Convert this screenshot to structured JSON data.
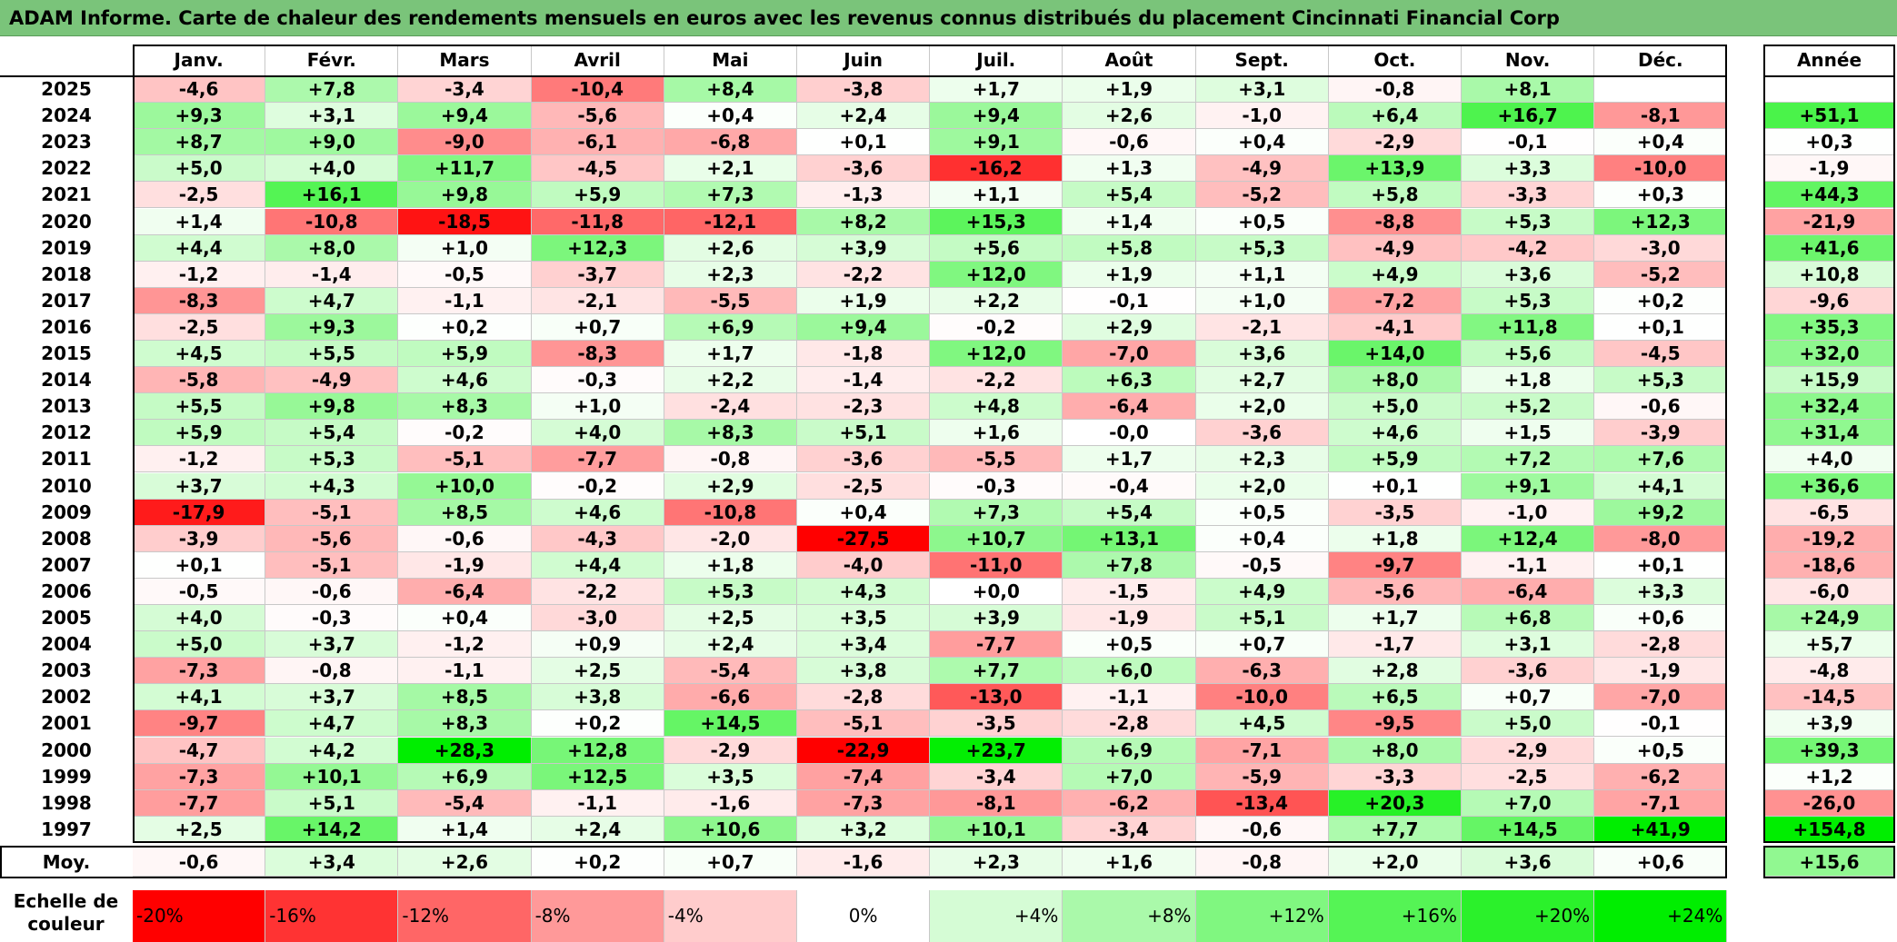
{
  "title": "ADAM Informe. Carte de chaleur des rendements mensuels en euros avec les revenus connus distribués du placement Cincinnati Financial Corp",
  "chart_data": {
    "type": "heatmap",
    "title": "ADAM Informe. Carte de chaleur des rendements mensuels en euros avec les revenus connus distribués du placement Cincinnati Financial Corp",
    "columns": [
      "Janv.",
      "Févr.",
      "Mars",
      "Avril",
      "Mai",
      "Juin",
      "Juil.",
      "Août",
      "Sept.",
      "Oct.",
      "Nov.",
      "Déc."
    ],
    "annual_label": "Année",
    "average_label": "Moy.",
    "rows": [
      {
        "year": "2025",
        "values": [
          "-4,6",
          "+7,8",
          "-3,4",
          "-10,4",
          "+8,4",
          "-3,8",
          "+1,7",
          "+1,9",
          "+3,1",
          "-0,8",
          "+8,1",
          ""
        ],
        "annual": ""
      },
      {
        "year": "2024",
        "values": [
          "+9,3",
          "+3,1",
          "+9,4",
          "-5,6",
          "+0,4",
          "+2,4",
          "+9,4",
          "+2,6",
          "-1,0",
          "+6,4",
          "+16,7",
          "-8,1"
        ],
        "annual": "+51,1"
      },
      {
        "year": "2023",
        "values": [
          "+8,7",
          "+9,0",
          "-9,0",
          "-6,1",
          "-6,8",
          "+0,1",
          "+9,1",
          "-0,6",
          "+0,4",
          "-2,9",
          "-0,1",
          "+0,4"
        ],
        "annual": "+0,3"
      },
      {
        "year": "2022",
        "values": [
          "+5,0",
          "+4,0",
          "+11,7",
          "-4,5",
          "+2,1",
          "-3,6",
          "-16,2",
          "+1,3",
          "-4,9",
          "+13,9",
          "+3,3",
          "-10,0"
        ],
        "annual": "-1,9"
      },
      {
        "year": "2021",
        "values": [
          "-2,5",
          "+16,1",
          "+9,8",
          "+5,9",
          "+7,3",
          "-1,3",
          "+1,1",
          "+5,4",
          "-5,2",
          "+5,8",
          "-3,3",
          "+0,3"
        ],
        "annual": "+44,3"
      },
      {
        "year": "2020",
        "values": [
          "+1,4",
          "-10,8",
          "-18,5",
          "-11,8",
          "-12,1",
          "+8,2",
          "+15,3",
          "+1,4",
          "+0,5",
          "-8,8",
          "+5,3",
          "+12,3"
        ],
        "annual": "-21,9"
      },
      {
        "year": "2019",
        "values": [
          "+4,4",
          "+8,0",
          "+1,0",
          "+12,3",
          "+2,6",
          "+3,9",
          "+5,6",
          "+5,8",
          "+5,3",
          "-4,9",
          "-4,2",
          "-3,0"
        ],
        "annual": "+41,6"
      },
      {
        "year": "2018",
        "values": [
          "-1,2",
          "-1,4",
          "-0,5",
          "-3,7",
          "+2,3",
          "-2,2",
          "+12,0",
          "+1,9",
          "+1,1",
          "+4,9",
          "+3,6",
          "-5,2"
        ],
        "annual": "+10,8"
      },
      {
        "year": "2017",
        "values": [
          "-8,3",
          "+4,7",
          "-1,1",
          "-2,1",
          "-5,5",
          "+1,9",
          "+2,2",
          "-0,1",
          "+1,0",
          "-7,2",
          "+5,3",
          "+0,2"
        ],
        "annual": "-9,6"
      },
      {
        "year": "2016",
        "values": [
          "-2,5",
          "+9,3",
          "+0,2",
          "+0,7",
          "+6,9",
          "+9,4",
          "-0,2",
          "+2,9",
          "-2,1",
          "-4,1",
          "+11,8",
          "+0,1"
        ],
        "annual": "+35,3"
      },
      {
        "year": "2015",
        "values": [
          "+4,5",
          "+5,5",
          "+5,9",
          "-8,3",
          "+1,7",
          "-1,8",
          "+12,0",
          "-7,0",
          "+3,6",
          "+14,0",
          "+5,6",
          "-4,5"
        ],
        "annual": "+32,0"
      },
      {
        "year": "2014",
        "values": [
          "-5,8",
          "-4,9",
          "+4,6",
          "-0,3",
          "+2,2",
          "-1,4",
          "-2,2",
          "+6,3",
          "+2,7",
          "+8,0",
          "+1,8",
          "+5,3"
        ],
        "annual": "+15,9"
      },
      {
        "year": "2013",
        "values": [
          "+5,5",
          "+9,8",
          "+8,3",
          "+1,0",
          "-2,4",
          "-2,3",
          "+4,8",
          "-6,4",
          "+2,0",
          "+5,0",
          "+5,2",
          "-0,6"
        ],
        "annual": "+32,4"
      },
      {
        "year": "2012",
        "values": [
          "+5,9",
          "+5,4",
          "-0,2",
          "+4,0",
          "+8,3",
          "+5,1",
          "+1,6",
          "-0,0",
          "-3,6",
          "+4,6",
          "+1,5",
          "-3,9"
        ],
        "annual": "+31,4"
      },
      {
        "year": "2011",
        "values": [
          "-1,2",
          "+5,3",
          "-5,1",
          "-7,7",
          "-0,8",
          "-3,6",
          "-5,5",
          "+1,7",
          "+2,3",
          "+5,9",
          "+7,2",
          "+7,6"
        ],
        "annual": "+4,0"
      },
      {
        "year": "2010",
        "values": [
          "+3,7",
          "+4,3",
          "+10,0",
          "-0,2",
          "+2,9",
          "-2,5",
          "-0,3",
          "-0,4",
          "+2,0",
          "+0,1",
          "+9,1",
          "+4,1"
        ],
        "annual": "+36,6"
      },
      {
        "year": "2009",
        "values": [
          "-17,9",
          "-5,1",
          "+8,5",
          "+4,6",
          "-10,8",
          "+0,4",
          "+7,3",
          "+5,4",
          "+0,5",
          "-3,5",
          "-1,0",
          "+9,2"
        ],
        "annual": "-6,5"
      },
      {
        "year": "2008",
        "values": [
          "-3,9",
          "-5,6",
          "-0,6",
          "-4,3",
          "-2,0",
          "-27,5",
          "+10,7",
          "+13,1",
          "+0,4",
          "+1,8",
          "+12,4",
          "-8,0"
        ],
        "annual": "-19,2"
      },
      {
        "year": "2007",
        "values": [
          "+0,1",
          "-5,1",
          "-1,9",
          "+4,4",
          "+1,8",
          "-4,0",
          "-11,0",
          "+7,8",
          "-0,5",
          "-9,7",
          "-1,1",
          "+0,1"
        ],
        "annual": "-18,6"
      },
      {
        "year": "2006",
        "values": [
          "-0,5",
          "-0,6",
          "-6,4",
          "-2,2",
          "+5,3",
          "+4,3",
          "+0,0",
          "-1,5",
          "+4,9",
          "-5,6",
          "-6,4",
          "+3,3"
        ],
        "annual": "-6,0"
      },
      {
        "year": "2005",
        "values": [
          "+4,0",
          "-0,3",
          "+0,4",
          "-3,0",
          "+2,5",
          "+3,5",
          "+3,9",
          "-1,9",
          "+5,1",
          "+1,7",
          "+6,8",
          "+0,6"
        ],
        "annual": "+24,9"
      },
      {
        "year": "2004",
        "values": [
          "+5,0",
          "+3,7",
          "-1,2",
          "+0,9",
          "+2,4",
          "+3,4",
          "-7,7",
          "+0,5",
          "+0,7",
          "-1,7",
          "+3,1",
          "-2,8"
        ],
        "annual": "+5,7"
      },
      {
        "year": "2003",
        "values": [
          "-7,3",
          "-0,8",
          "-1,1",
          "+2,5",
          "-5,4",
          "+3,8",
          "+7,7",
          "+6,0",
          "-6,3",
          "+2,8",
          "-3,6",
          "-1,9"
        ],
        "annual": "-4,8"
      },
      {
        "year": "2002",
        "values": [
          "+4,1",
          "+3,7",
          "+8,5",
          "+3,8",
          "-6,6",
          "-2,8",
          "-13,0",
          "-1,1",
          "-10,0",
          "+6,5",
          "+0,7",
          "-7,0"
        ],
        "annual": "-14,5"
      },
      {
        "year": "2001",
        "values": [
          "-9,7",
          "+4,7",
          "+8,3",
          "+0,2",
          "+14,5",
          "-5,1",
          "-3,5",
          "-2,8",
          "+4,5",
          "-9,5",
          "+5,0",
          "-0,1"
        ],
        "annual": "+3,9"
      },
      {
        "year": "2000",
        "values": [
          "-4,7",
          "+4,2",
          "+28,3",
          "+12,8",
          "-2,9",
          "-22,9",
          "+23,7",
          "+6,9",
          "-7,1",
          "+8,0",
          "-2,9",
          "+0,5"
        ],
        "annual": "+39,3"
      },
      {
        "year": "1999",
        "values": [
          "-7,3",
          "+10,1",
          "+6,9",
          "+12,5",
          "+3,5",
          "-7,4",
          "-3,4",
          "+7,0",
          "-5,9",
          "-3,3",
          "-2,5",
          "-6,2"
        ],
        "annual": "+1,2"
      },
      {
        "year": "1998",
        "values": [
          "-7,7",
          "+5,1",
          "-5,4",
          "-1,1",
          "-1,6",
          "-7,3",
          "-8,1",
          "-6,2",
          "-13,4",
          "+20,3",
          "+7,0",
          "-7,1"
        ],
        "annual": "-26,0"
      },
      {
        "year": "1997",
        "values": [
          "+2,5",
          "+14,2",
          "+1,4",
          "+2,4",
          "+10,6",
          "+3,2",
          "+10,1",
          "-3,4",
          "-0,6",
          "+7,7",
          "+14,5",
          "+41,9"
        ],
        "annual": "+154,8"
      }
    ],
    "average": {
      "values": [
        "-0,6",
        "+3,4",
        "+2,6",
        "+0,2",
        "+0,7",
        "-1,6",
        "+2,3",
        "+1,6",
        "-0,8",
        "+2,0",
        "+3,6",
        "+0,6"
      ],
      "annual": "+15,6"
    },
    "scale_label": "Echelle de couleur",
    "scale": [
      "-20%",
      "-16%",
      "-12%",
      "-8%",
      "-4%",
      "0%",
      "+4%",
      "+8%",
      "+12%",
      "+16%",
      "+20%",
      "+24%"
    ],
    "colors": {
      "strong_red": "#ff0000",
      "white": "#ffffff",
      "strong_green": "#00ee00",
      "title_bg": "#7ac47a"
    }
  }
}
